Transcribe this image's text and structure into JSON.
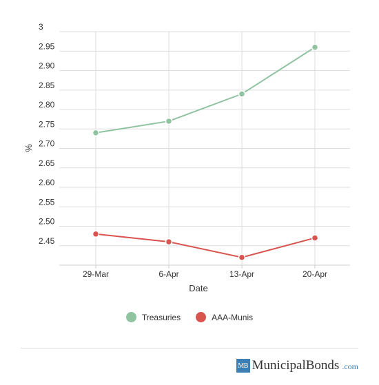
{
  "chart_data": {
    "type": "line",
    "categories": [
      "29-Mar",
      "6-Apr",
      "13-Apr",
      "20-Apr"
    ],
    "series": [
      {
        "name": "Treasuries",
        "values": [
          2.74,
          2.77,
          2.84,
          2.96
        ],
        "color": "#8fc3a1"
      },
      {
        "name": "AAA-Munis",
        "values": [
          2.48,
          2.46,
          2.42,
          2.47
        ],
        "color": "#d9534f"
      }
    ],
    "xlabel": "Date",
    "ylabel": "%",
    "ylim": [
      2.4,
      3.0
    ],
    "yticks": [
      "2.45",
      "2.50",
      "2.55",
      "2.60",
      "2.65",
      "2.70",
      "2.75",
      "2.80",
      "2.85",
      "2.90",
      "2.95",
      "3"
    ],
    "grid": true,
    "legend_position": "bottom"
  },
  "brand": {
    "badge": "MB",
    "name": "MunicipalBonds",
    "tld": ".com"
  }
}
